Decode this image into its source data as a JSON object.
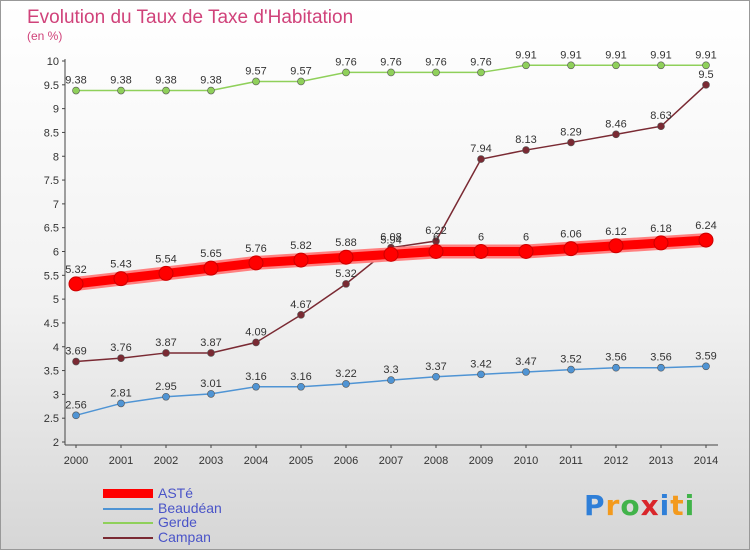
{
  "title": "Evolution du Taux de Taxe d'Habitation",
  "subtitle": "(en %)",
  "logo": "Proxiti",
  "chart_data": {
    "type": "line",
    "x": [
      "2000",
      "2001",
      "2002",
      "2003",
      "2004",
      "2005",
      "2006",
      "2007",
      "2008",
      "2009",
      "2010",
      "2011",
      "2012",
      "2013",
      "2014"
    ],
    "ylim": [
      2,
      10
    ],
    "yticks": [
      "2",
      "2.5",
      "3",
      "3.5",
      "4",
      "4.5",
      "5",
      "5.5",
      "6",
      "6.5",
      "7",
      "7.5",
      "8",
      "8.5",
      "9",
      "9.5",
      "10"
    ],
    "grid": false,
    "legend_position": "bottom-left",
    "series": [
      {
        "name": "ASTé",
        "color": "#ff0000",
        "values": [
          5.32,
          5.43,
          5.54,
          5.65,
          5.76,
          5.82,
          5.88,
          5.94,
          6,
          6,
          6,
          6.06,
          6.12,
          6.18,
          6.24
        ],
        "labels": [
          "5.32",
          "5.43",
          "5.54",
          "5.65",
          "5.76",
          "5.82",
          "5.88",
          "5.94",
          "6",
          "6",
          "6",
          "6.06",
          "6.12",
          "6.18",
          "6.24"
        ]
      },
      {
        "name": "Beaudéan",
        "color": "#4f94d4",
        "values": [
          2.56,
          2.81,
          2.95,
          3.01,
          3.16,
          3.16,
          3.22,
          3.3,
          3.37,
          3.42,
          3.47,
          3.52,
          3.56,
          3.56,
          3.59
        ],
        "labels": [
          "2.56",
          "2.81",
          "2.95",
          "3.01",
          "3.16",
          "3.16",
          "3.22",
          "3.3",
          "3.37",
          "3.42",
          "3.47",
          "3.52",
          "3.56",
          "3.56",
          "3.59"
        ]
      },
      {
        "name": "Gerde",
        "color": "#8fd05a",
        "values": [
          9.38,
          9.38,
          9.38,
          9.38,
          9.57,
          9.57,
          9.76,
          9.76,
          9.76,
          9.76,
          9.91,
          9.91,
          9.91,
          9.91,
          9.91
        ],
        "labels": [
          "9.38",
          "9.38",
          "9.38",
          "9.38",
          "9.57",
          "9.57",
          "9.76",
          "9.76",
          "9.76",
          "9.76",
          "9.91",
          "9.91",
          "9.91",
          "9.91",
          "9.91"
        ]
      },
      {
        "name": "Campan",
        "color": "#7a2a33",
        "values": [
          3.69,
          3.76,
          3.87,
          3.87,
          4.09,
          4.67,
          5.32,
          6.08,
          6.22,
          7.94,
          8.13,
          8.29,
          8.46,
          8.63,
          9.5
        ],
        "labels": [
          "3.69",
          "3.76",
          "3.87",
          "3.87",
          "4.09",
          "4.67",
          "5.32",
          "6.08",
          "6.22",
          "7.94",
          "8.13",
          "8.29",
          "8.46",
          "8.63",
          "9.5"
        ]
      }
    ]
  }
}
